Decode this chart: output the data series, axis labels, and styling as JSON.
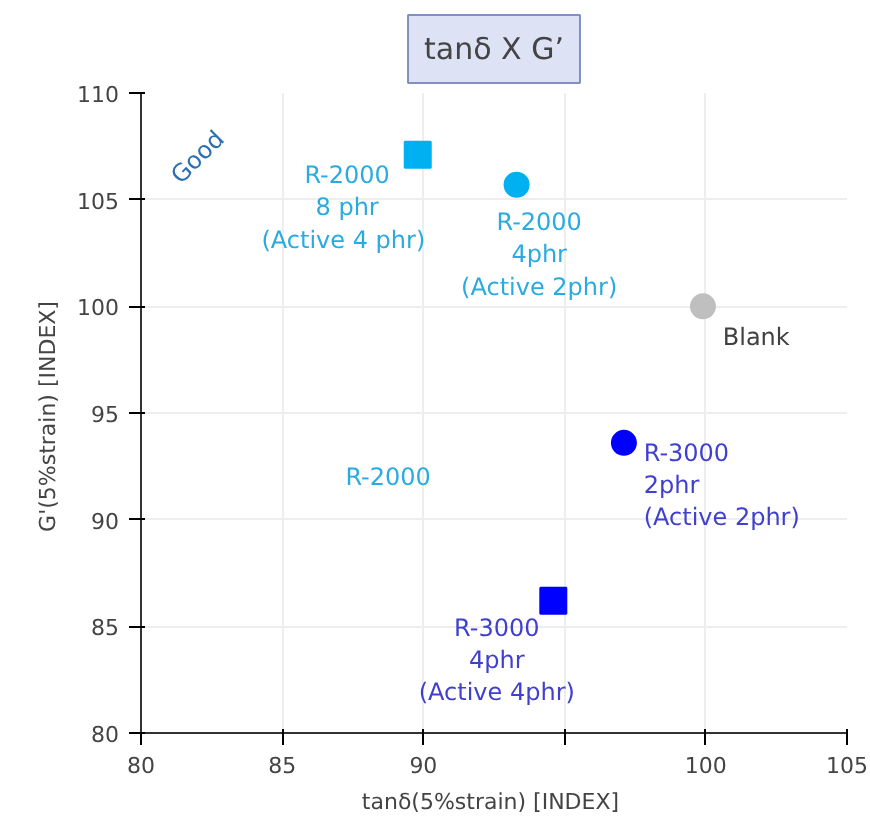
{
  "chart_data": {
    "type": "scatter",
    "title": "tanδ X G’",
    "xlabel": "tanδ(5%strain)  [INDEX]",
    "ylabel": "G'(5%strain)  [INDEX]",
    "xlim": [
      80,
      105
    ],
    "xticks": [
      80,
      85,
      90,
      {
        "value": 95,
        "label": null
      },
      100,
      105
    ],
    "ylim": [
      80,
      110
    ],
    "yticks": [
      80,
      85,
      90,
      95,
      100,
      105,
      110
    ],
    "grid": true,
    "series": [
      {
        "name": "R-2000\n8 phr\n(Active  4 phr)",
        "color": "#00b0f0",
        "marker": "square",
        "x": [
          89.8
        ],
        "values": [
          107.1
        ]
      },
      {
        "name": "R-2000\n4phr\n(Active 2phr)",
        "color": "#00b0f0",
        "marker": "circle",
        "x": [
          93.3
        ],
        "values": [
          105.7
        ]
      },
      {
        "name": "Blank",
        "color": "#bfbfbf",
        "marker": "circle",
        "x": [
          99.9
        ],
        "values": [
          100
        ]
      },
      {
        "name": "R-3000\n2phr\n(Active 2phr)",
        "color": "#0000ff",
        "marker": "circle",
        "x": [
          97.1
        ],
        "values": [
          93.6
        ]
      },
      {
        "name": "R-3000\n4phr\n(Active 4phr)",
        "color": "#0000ff",
        "marker": "square",
        "x": [
          94.6
        ],
        "values": [
          86.2
        ]
      }
    ],
    "annotations": [
      "R-2000",
      "Good"
    ]
  }
}
